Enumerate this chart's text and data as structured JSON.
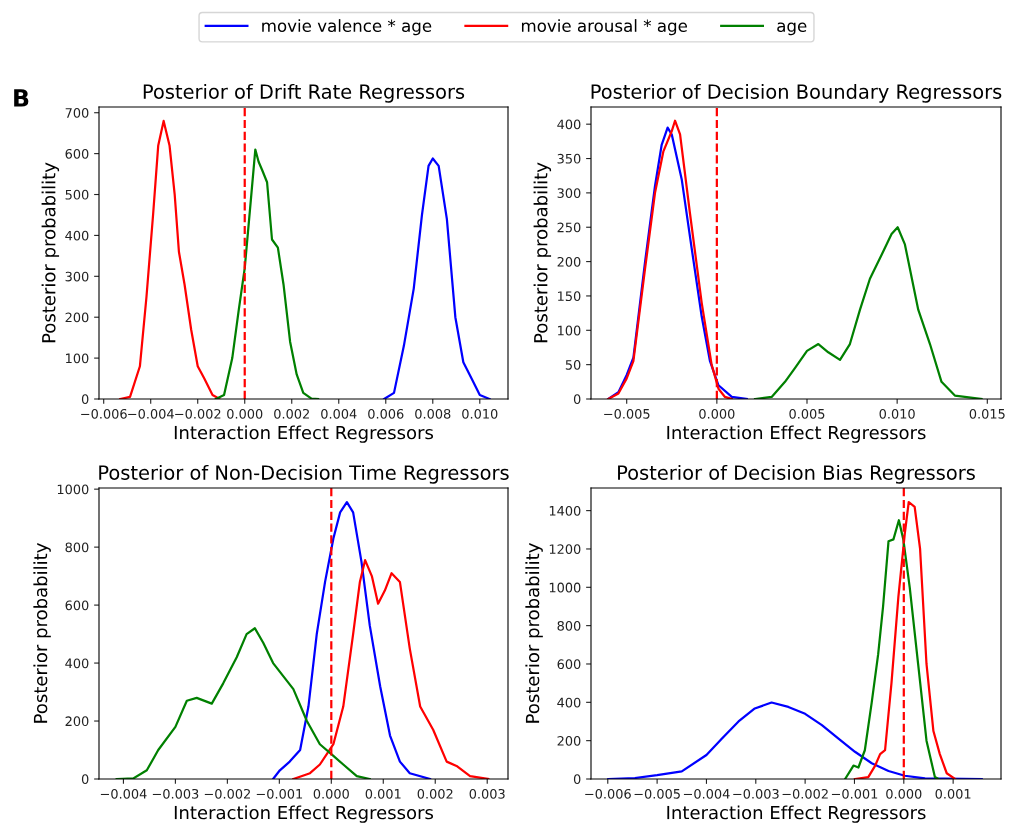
{
  "chart_data": [
    {
      "type": "line",
      "title": "Posterior of Drift Rate Regressors",
      "xlabel": "Interaction Effect Regressors",
      "ylabel": "Posterior probability",
      "annotations": [
        "B"
      ],
      "legend": "top",
      "xlim": [
        -0.0062,
        0.0112
      ],
      "ylim": [
        0,
        714
      ],
      "xticks": [
        {
          "value": -0.006,
          "label": "−0.006"
        },
        {
          "value": -0.004,
          "label": "−0.004"
        },
        {
          "value": -0.002,
          "label": "−0.002"
        },
        {
          "value": 0,
          "label": "0.000"
        },
        {
          "value": 0.002,
          "label": "0.002"
        },
        {
          "value": 0.004,
          "label": "0.004"
        },
        {
          "value": 0.006,
          "label": "0.006"
        },
        {
          "value": 0.008,
          "label": "0.008"
        },
        {
          "value": 0.01,
          "label": "0.010"
        }
      ],
      "yticks": [
        0,
        100,
        200,
        300,
        400,
        500,
        600,
        700
      ],
      "ref_lines": [
        {
          "axis": "x",
          "value": 0,
          "color": "#ff0000",
          "line_style": "dashed"
        }
      ],
      "series": [
        {
          "name": "movie valence * age",
          "color": "#0000ff",
          "x": [
            0.00593,
            0.00635,
            0.00677,
            0.00719,
            0.00754,
            0.00782,
            0.008,
            0.00825,
            0.0086,
            0.00896,
            0.0093,
            0.00965,
            0.01,
            0.01042
          ],
          "values": [
            0,
            15,
            130,
            270,
            450,
            570,
            588,
            570,
            440,
            200,
            90,
            50,
            10,
            0
          ]
        },
        {
          "name": "movie arousal * age",
          "color": "#ff0000",
          "x": [
            -0.0053,
            -0.00488,
            -0.00446,
            -0.00418,
            -0.0039,
            -0.00368,
            -0.00345,
            -0.0032,
            -0.00298,
            -0.0028,
            -0.00256,
            -0.00228,
            -0.002,
            -0.00172,
            -0.00137,
            -0.00109
          ],
          "values": [
            0,
            5,
            80,
            250,
            450,
            620,
            680,
            620,
            500,
            360,
            280,
            170,
            80,
            50,
            10,
            1
          ]
        },
        {
          "name": "age",
          "color": "#008000",
          "x": [
            -0.00123,
            -0.00088,
            -0.00053,
            -0.00025,
            0.0,
            0.00025,
            0.00045,
            0.00059,
            0.00074,
            0.00095,
            0.00116,
            0.00141,
            0.00165,
            0.00193,
            0.00221,
            0.00249,
            0.00284,
            0.00312
          ],
          "values": [
            0,
            10,
            100,
            220,
            320,
            480,
            610,
            580,
            560,
            530,
            390,
            370,
            280,
            140,
            60,
            15,
            1,
            0
          ]
        }
      ]
    },
    {
      "type": "line",
      "title": "Posterior of Decision Boundary Regressors",
      "xlabel": "Interaction Effect Regressors",
      "ylabel": "Posterior probability",
      "xlim": [
        -0.00698,
        0.01576
      ],
      "ylim": [
        0,
        425
      ],
      "xticks": [
        {
          "value": -0.005,
          "label": "−0.005"
        },
        {
          "value": 0,
          "label": "0.000"
        },
        {
          "value": 0.005,
          "label": "0.005"
        },
        {
          "value": 0.01,
          "label": "0.010"
        },
        {
          "value": 0.015,
          "label": "0.015"
        }
      ],
      "yticks": [
        0,
        50,
        100,
        150,
        200,
        250,
        300,
        350,
        400
      ],
      "ref_lines": [
        {
          "axis": "x",
          "value": 0,
          "color": "#ff0000",
          "line_style": "dashed"
        }
      ],
      "series": [
        {
          "color": "#0000ff",
          "x": [
            -0.00602,
            -0.00546,
            -0.005,
            -0.00463,
            -0.00398,
            -0.00343,
            -0.00306,
            -0.00273,
            -0.0025,
            -0.00195,
            -0.0014,
            -0.00084,
            -0.00038,
            9e-05,
            0.00083,
            0.00166
          ],
          "values": [
            0,
            10,
            35,
            60,
            200,
            310,
            370,
            395,
            385,
            320,
            220,
            120,
            55,
            20,
            3,
            0
          ]
        },
        {
          "color": "#ff0000",
          "x": [
            -0.00602,
            -0.00546,
            -0.005,
            -0.00463,
            -0.00398,
            -0.00343,
            -0.00297,
            -0.0025,
            -0.00232,
            -0.00204,
            -0.00149,
            -0.00084,
            -0.00029,
            9e-05,
            0.00045,
            0.00083
          ],
          "values": [
            0,
            8,
            30,
            55,
            190,
            300,
            360,
            390,
            405,
            385,
            270,
            140,
            50,
            15,
            3,
            0
          ]
        },
        {
          "color": "#008000",
          "x": [
            0.00212,
            0.00304,
            0.00378,
            0.00433,
            0.005,
            0.00563,
            0.00618,
            0.00683,
            0.00738,
            0.00794,
            0.00849,
            0.00914,
            0.00969,
            0.01003,
            0.01043,
            0.01117,
            0.01182,
            0.01246,
            0.0132,
            0.01468
          ],
          "values": [
            0,
            3,
            25,
            45,
            70,
            80,
            68,
            57,
            80,
            130,
            175,
            210,
            240,
            250,
            225,
            130,
            80,
            25,
            5,
            0
          ]
        }
      ]
    },
    {
      "type": "line",
      "title": "Posterior of Non-Decision Time Regressors",
      "xlabel": "Interaction Effect Regressors",
      "ylabel": "Posterior probability",
      "xlim": [
        -0.00447,
        0.0034
      ],
      "ylim": [
        0,
        1004
      ],
      "xticks": [
        {
          "value": -0.004,
          "label": "−0.004"
        },
        {
          "value": -0.003,
          "label": "−0.003"
        },
        {
          "value": -0.002,
          "label": "−0.002"
        },
        {
          "value": -0.001,
          "label": "−0.001"
        },
        {
          "value": 0,
          "label": "0.000"
        },
        {
          "value": 0.001,
          "label": "0.001"
        },
        {
          "value": 0.002,
          "label": "0.002"
        },
        {
          "value": 0.003,
          "label": "0.003"
        }
      ],
      "yticks": [
        0,
        200,
        400,
        600,
        800,
        1000
      ],
      "ref_lines": [
        {
          "axis": "x",
          "value": 0,
          "color": "#ff0000",
          "line_style": "dashed"
        }
      ],
      "series": [
        {
          "color": "#0000ff",
          "x": [
            -0.00112,
            -0.00099,
            -0.0008,
            -0.0006,
            -0.00044,
            -0.00028,
            -0.00012,
            4e-05,
            0.00017,
            0.0003,
            0.00042,
            0.00058,
            0.00074,
            0.00094,
            0.00113,
            0.00132,
            0.00151,
            0.0019
          ],
          "values": [
            0,
            30,
            60,
            100,
            250,
            500,
            680,
            830,
            920,
            955,
            920,
            750,
            530,
            320,
            150,
            60,
            20,
            0
          ]
        },
        {
          "color": "#ff0000",
          "x": [
            -0.00073,
            -0.00041,
            -0.00022,
            4e-05,
            0.00023,
            0.00042,
            0.00055,
            0.00065,
            0.00078,
            0.0009,
            0.00103,
            0.00116,
            0.00132,
            0.00151,
            0.00171,
            0.00196,
            0.00222,
            0.00241,
            0.00267,
            0.00302
          ],
          "values": [
            0,
            20,
            50,
            120,
            250,
            500,
            680,
            755,
            700,
            605,
            650,
            710,
            680,
            450,
            250,
            170,
            60,
            45,
            10,
            0
          ]
        },
        {
          "color": "#008000",
          "x": [
            -0.00413,
            -0.00381,
            -0.00355,
            -0.00333,
            -0.003,
            -0.00278,
            -0.00259,
            -0.0023,
            -0.00208,
            -0.00182,
            -0.00163,
            -0.00147,
            -0.00131,
            -0.00112,
            -0.00073,
            -0.00047,
            -0.00022,
            4e-05,
            0.00023,
            0.00049,
            0.00074
          ],
          "values": [
            0,
            2,
            30,
            100,
            180,
            270,
            280,
            260,
            330,
            420,
            500,
            520,
            470,
            400,
            310,
            200,
            120,
            80,
            50,
            10,
            0
          ]
        }
      ]
    },
    {
      "type": "line",
      "title": "Posterior of Decision Bias Regressors",
      "xlabel": "Interaction Effect Regressors",
      "ylabel": "Posterior probability",
      "xlim": [
        -0.00634,
        0.00197
      ],
      "ylim": [
        0,
        1518
      ],
      "xticks": [
        {
          "value": -0.006,
          "label": "−0.006"
        },
        {
          "value": -0.005,
          "label": "−0.005"
        },
        {
          "value": -0.004,
          "label": "−0.004"
        },
        {
          "value": -0.003,
          "label": "−0.003"
        },
        {
          "value": -0.002,
          "label": "−0.002"
        },
        {
          "value": -0.001,
          "label": "−0.001"
        },
        {
          "value": 0,
          "label": "0.000"
        },
        {
          "value": 0.001,
          "label": "0.001"
        }
      ],
      "yticks": [
        0,
        200,
        400,
        600,
        800,
        1000,
        1200,
        1400
      ],
      "ref_lines": [
        {
          "axis": "x",
          "value": 0,
          "color": "#ff0000",
          "line_style": "dashed"
        }
      ],
      "series": [
        {
          "color": "#0000ff",
          "x": [
            -0.00599,
            -0.00545,
            -0.005,
            -0.0045,
            -0.004,
            -0.00369,
            -0.00335,
            -0.00302,
            -0.00268,
            -0.00234,
            -0.002,
            -0.00166,
            -0.00133,
            -0.00099,
            -0.00065,
            -0.00031,
            2e-05,
            0.00043,
            0.00158
          ],
          "values": [
            0,
            5,
            20,
            40,
            125,
            210,
            300,
            368,
            399,
            376,
            340,
            281,
            212,
            142,
            82,
            42,
            17,
            3,
            0
          ]
        },
        {
          "color": "#ff0000",
          "x": [
            -0.00099,
            -0.00072,
            -0.00058,
            -0.00048,
            -0.00038,
            -0.00025,
            -0.00011,
            2e-05,
            0.0001,
            0.00022,
            0.00033,
            0.00046,
            0.0006,
            0.00073,
            0.00087,
            0.00104
          ],
          "values": [
            0,
            10,
            70,
            130,
            150,
            500,
            950,
            1280,
            1445,
            1420,
            1200,
            600,
            250,
            130,
            30,
            0
          ]
        },
        {
          "color": "#008000",
          "x": [
            -0.00119,
            -0.00102,
            -0.00092,
            -0.00079,
            -0.00065,
            -0.00052,
            -0.00042,
            -0.00031,
            -0.00021,
            -0.0001,
            -1e-05,
            0.00012,
            0.00029,
            0.00046,
            0.00063,
            0.0007
          ],
          "values": [
            0,
            70,
            60,
            150,
            400,
            650,
            900,
            1240,
            1250,
            1350,
            1250,
            1000,
            600,
            200,
            10,
            0
          ]
        }
      ]
    }
  ]
}
